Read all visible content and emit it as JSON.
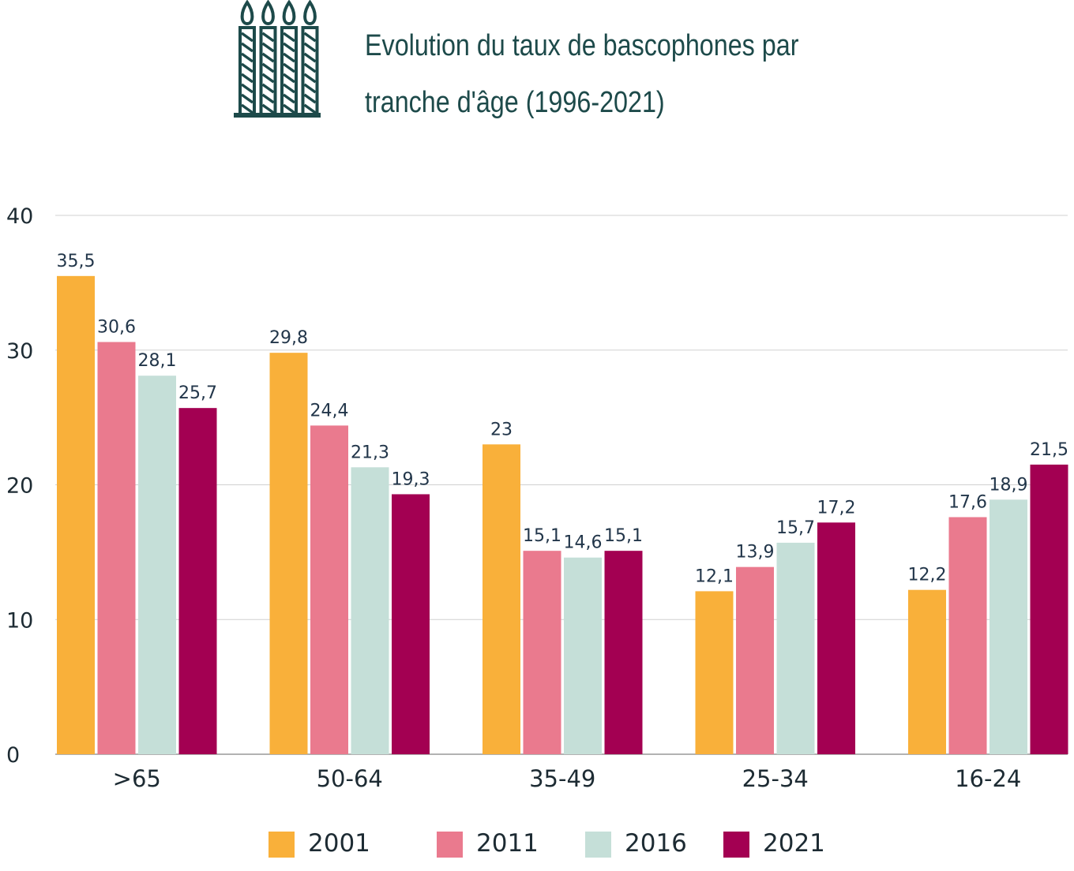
{
  "chart_data": {
    "type": "bar",
    "title": "Evolution du taux de bascophones par tranche d'âge (1996-2021)",
    "categories": [
      ">65",
      "50-64",
      "35-49",
      "25-34",
      "16-24"
    ],
    "series": [
      {
        "name": "2001",
        "color": "#f9b03a",
        "values": [
          35.5,
          29.8,
          23,
          12.1,
          12.2
        ],
        "labels": [
          "35,5",
          "29,8",
          "23",
          "12,1",
          "12,2"
        ]
      },
      {
        "name": "2011",
        "color": "#ea7a8e",
        "values": [
          30.6,
          24.4,
          15.1,
          13.9,
          17.6
        ],
        "labels": [
          "30,6",
          "24,4",
          "15,1",
          "13,9",
          "17,6"
        ]
      },
      {
        "name": "2016",
        "color": "#c5dfd8",
        "values": [
          28.1,
          21.3,
          14.6,
          15.7,
          18.9
        ],
        "labels": [
          "28,1",
          "21,3",
          "14,6",
          "15,7",
          "18,9"
        ]
      },
      {
        "name": "2021",
        "color": "#a30052",
        "values": [
          25.7,
          19.3,
          15.1,
          17.2,
          21.5
        ],
        "labels": [
          "25,7",
          "19,3",
          "15,1",
          "17,2",
          "21,5"
        ]
      }
    ],
    "yticks": [
      "0",
      "10",
      "20",
      "30",
      "40"
    ],
    "ylim": [
      0,
      40
    ],
    "grid": true,
    "legend": "bottom",
    "xlabel": "",
    "ylabel": ""
  },
  "header": {
    "icon": "birthday-candles-icon",
    "icon_color": "#1d4a4a"
  }
}
